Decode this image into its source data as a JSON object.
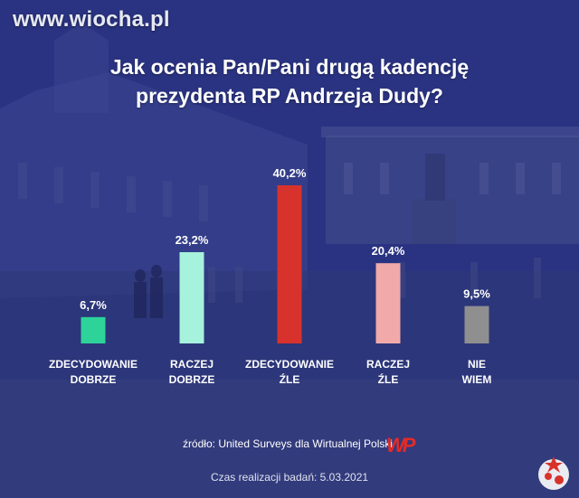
{
  "watermark": "www.wiocha.pl",
  "title": {
    "line1": "Jak ocenia Pan/Pani drugą kadencję",
    "line2": "prezydenta RP Andrzeja Dudy?"
  },
  "colors": {
    "background": "#27307a",
    "bars": [
      "#2ed39a",
      "#a6f2dc",
      "#d8322c",
      "#f1aaa9",
      "#8f8f8f"
    ]
  },
  "chart_data": {
    "type": "bar",
    "title": "Jak ocenia Pan/Pani drugą kadencję prezydenta RP Andrzeja Dudy?",
    "categories": [
      [
        "ZDECYDOWANIE",
        "DOBRZE"
      ],
      [
        "RACZEJ",
        "DOBRZE"
      ],
      [
        "ZDECYDOWANIE",
        "ŹLE"
      ],
      [
        "RACZEJ",
        "ŹLE"
      ],
      [
        "NIE",
        "WIEM"
      ]
    ],
    "values": [
      6.7,
      23.2,
      40.2,
      20.4,
      9.5
    ],
    "value_labels": [
      "6,7%",
      "23,2%",
      "40,2%",
      "20,4%",
      "9,5%"
    ],
    "unit": "%",
    "ylim": [
      0,
      40.2
    ],
    "grid": false,
    "legend": "none"
  },
  "source": {
    "prefix": "źródło:",
    "text": "United Surveys dla Wirtualnej Polski",
    "logo_text": "WP"
  },
  "date_text": "Czas realizacji badań: 5.03.2021",
  "corner_logo": "PiGS"
}
